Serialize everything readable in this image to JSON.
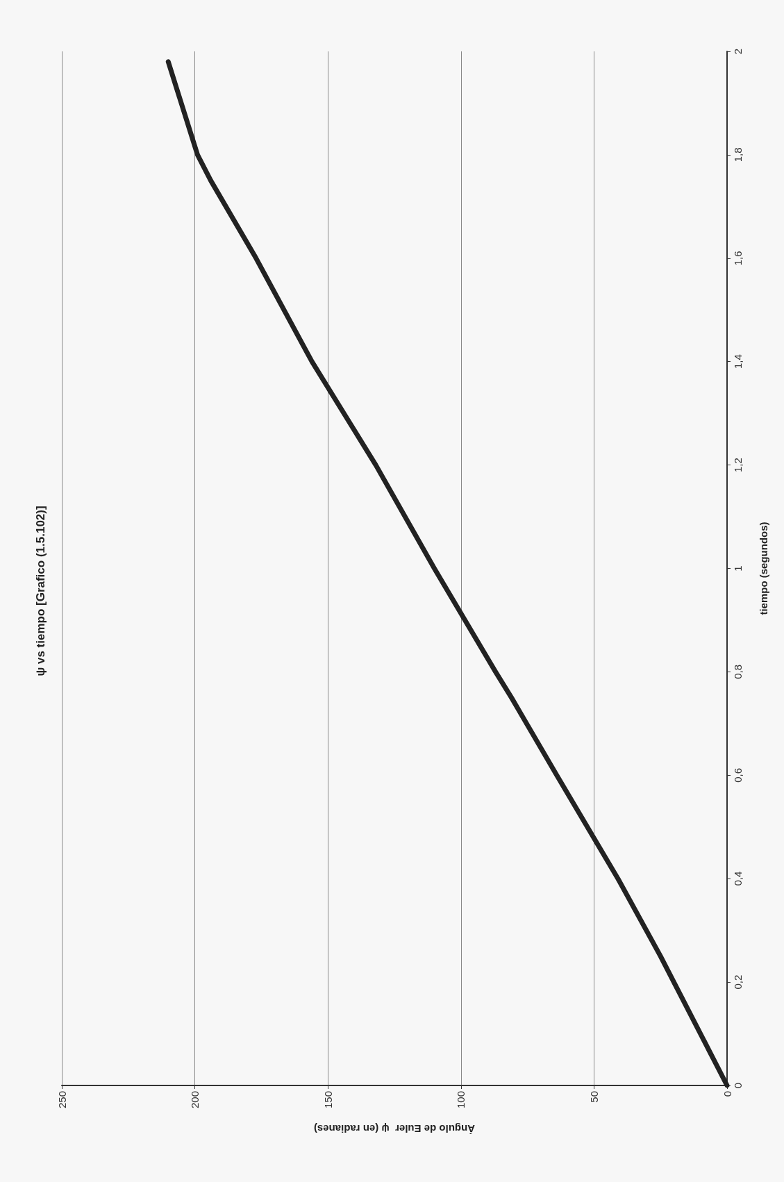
{
  "chart_data": {
    "type": "line",
    "title": "ψ vs tiempo [Grafico (1.5.102)]",
    "xlabel": "Ángulo de Euler  ψ (en radianes)",
    "ylabel": "tiempo (segundos)",
    "x": [
      0,
      20,
      25,
      41,
      64,
      81,
      87,
      110,
      132,
      138,
      156,
      177,
      194,
      199,
      210
    ],
    "series": [
      {
        "color": "#222222",
        "values": [
          0,
          0.2,
          0.25,
          0.4,
          0.6,
          0.75,
          0.8,
          1,
          1.2,
          1.25,
          1.4,
          1.6,
          1.75,
          1.8,
          1.98
        ]
      }
    ],
    "xlim": [
      250,
      0
    ],
    "xticks": [
      250,
      200,
      150,
      100,
      50,
      0
    ],
    "ylim": [
      0,
      2
    ],
    "yticks": [
      0,
      {
        "value": 0.2,
        "label": "0,2"
      },
      {
        "value": 0.4,
        "label": "0,4"
      },
      {
        "value": 0.6,
        "label": "0,6"
      },
      {
        "value": 0.8,
        "label": "0,8"
      },
      1,
      {
        "value": 1.2,
        "label": "1,2"
      },
      {
        "value": 1.4,
        "label": "1,4"
      },
      {
        "value": 1.6,
        "label": "1,6"
      },
      {
        "value": 1.8,
        "label": "1,8"
      },
      2
    ],
    "grid": "x",
    "marker": "none",
    "line_style": "solid"
  }
}
